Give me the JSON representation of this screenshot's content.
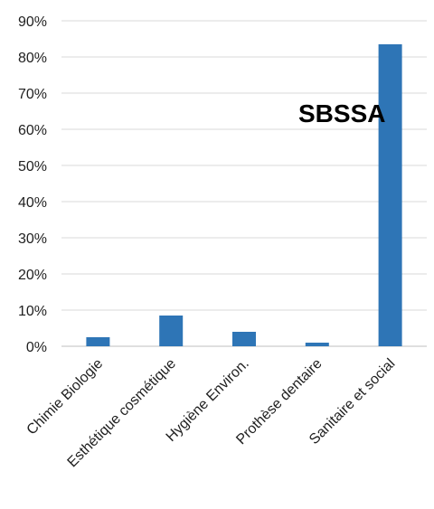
{
  "chart_data": {
    "type": "bar",
    "categories": [
      "Chimie Biologie",
      "Esthétique cosmétique",
      "Hygiène Environ.",
      "Prothèse dentaire",
      "Sanitaire et social"
    ],
    "values": [
      2.5,
      8.5,
      4,
      1,
      83.5
    ],
    "ylim": [
      0,
      90
    ],
    "yticks": [
      "0%",
      "10%",
      "20%",
      "30%",
      "40%",
      "50%",
      "60%",
      "70%",
      "80%",
      "90%"
    ],
    "grid": true,
    "bar_color": "#2e75b6",
    "grid_color": "#d9d9d9",
    "annotation": "SBSSA"
  }
}
